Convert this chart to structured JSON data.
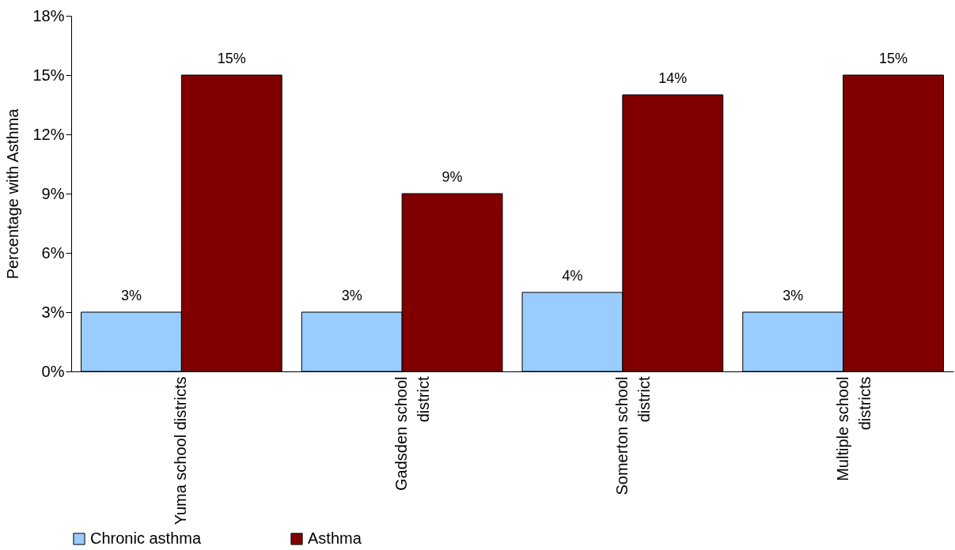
{
  "chart_data": {
    "type": "bar",
    "ylabel": "Percentage with Asthma",
    "categories": [
      "Yuma school districts",
      "Gadsden school district",
      "Somerton school district",
      "Multiple school districts"
    ],
    "series": [
      {
        "name": "Chronic asthma",
        "color": "#99ccff",
        "values": [
          3,
          3,
          4,
          3
        ],
        "value_labels": [
          "3%",
          "3%",
          "4%",
          "3%"
        ]
      },
      {
        "name": "Asthma",
        "color": "#800000",
        "values": [
          15,
          9,
          14,
          15
        ],
        "value_labels": [
          "15%",
          "9%",
          "14%",
          "15%"
        ]
      }
    ],
    "ylim": [
      0,
      18
    ],
    "yticks": [
      {
        "value": 0,
        "label": "0%"
      },
      {
        "value": 3,
        "label": "3%"
      },
      {
        "value": 6,
        "label": "6%"
      },
      {
        "value": 9,
        "label": "9%"
      },
      {
        "value": 12,
        "label": "12%"
      },
      {
        "value": 15,
        "label": "15%"
      },
      {
        "value": 18,
        "label": "18%"
      }
    ],
    "grid": false,
    "legend": "bottom left"
  }
}
